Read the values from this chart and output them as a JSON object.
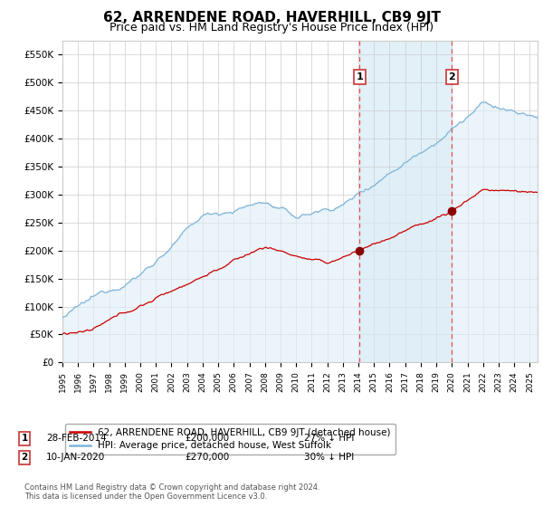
{
  "title": "62, ARRENDENE ROAD, HAVERHILL, CB9 9JT",
  "subtitle": "Price paid vs. HM Land Registry's House Price Index (HPI)",
  "title_fontsize": 11,
  "subtitle_fontsize": 9,
  "ylim": [
    0,
    575000
  ],
  "yticks": [
    0,
    50000,
    100000,
    150000,
    200000,
    250000,
    300000,
    350000,
    400000,
    450000,
    500000,
    550000
  ],
  "ytick_labels": [
    "£0",
    "£50K",
    "£100K",
    "£150K",
    "£200K",
    "£250K",
    "£300K",
    "£350K",
    "£400K",
    "£450K",
    "£500K",
    "£550K"
  ],
  "hpi_color": "#7fb4d8",
  "hpi_fill_color": "#ddeef7",
  "price_color": "#cc0000",
  "marker_color": "#8b0000",
  "vline_color": "#e05050",
  "event1_date": "28-FEB-2014",
  "event1_price_str": "£200,000",
  "event1_hpi_str": "27% ↓ HPI",
  "event2_date": "10-JAN-2020",
  "event2_price_str": "£270,000",
  "event2_hpi_str": "30% ↓ HPI",
  "legend_label1": "62, ARRENDENE ROAD, HAVERHILL, CB9 9JT (detached house)",
  "legend_label2": "HPI: Average price, detached house, West Suffolk",
  "footnote": "Contains HM Land Registry data © Crown copyright and database right 2024.\nThis data is licensed under the Open Government Licence v3.0.",
  "background_color": "#ffffff",
  "grid_color": "#cccccc"
}
